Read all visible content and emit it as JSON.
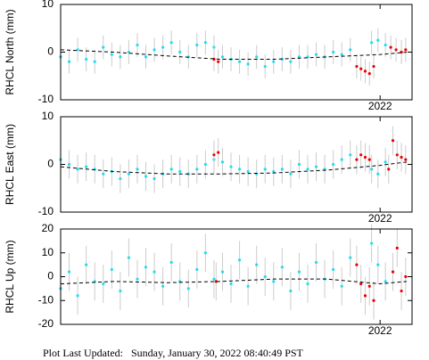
{
  "chart_data": [
    {
      "type": "scatter",
      "ylabel": "RHCL North (mm)",
      "xlim": [
        2019.0,
        2022.3
      ],
      "xticks": [
        2022
      ],
      "ylim": [
        -10,
        10
      ],
      "yticks": [
        -10,
        0,
        10
      ],
      "series": [
        {
          "color": "#22ddee",
          "error": 2.5,
          "x": [
            2019.0,
            2019.08,
            2019.16,
            2019.24,
            2019.32,
            2019.4,
            2019.48,
            2019.56,
            2019.64,
            2019.72,
            2019.8,
            2019.88,
            2019.96,
            2020.04,
            2020.12,
            2020.2,
            2020.28,
            2020.36,
            2020.44,
            2020.52,
            2020.6,
            2020.68,
            2020.76,
            2020.84,
            2020.92,
            2021.0,
            2021.08,
            2021.16,
            2021.24,
            2021.32,
            2021.4,
            2021.48,
            2021.56,
            2021.64,
            2021.72,
            2021.92,
            2021.98,
            2022.05
          ],
          "values": [
            -1,
            -2,
            0.5,
            -1.5,
            -2,
            1,
            -0.5,
            -1,
            0,
            1.5,
            -1,
            0.5,
            1,
            2,
            0,
            -1,
            1.5,
            2,
            1,
            -1,
            -1.5,
            -2,
            -2.5,
            -1,
            -3,
            -2,
            -1.5,
            -2,
            -1,
            -1,
            -0.5,
            -1,
            0,
            -0.5,
            0.5,
            2,
            2.5,
            1.5
          ]
        },
        {
          "color": "#ee0000",
          "error": 2.5,
          "x": [
            2020.44,
            2020.48,
            2021.78,
            2021.82,
            2021.86,
            2021.9,
            2021.94,
            2022.1,
            2022.15,
            2022.2,
            2022.24
          ],
          "values": [
            -1.5,
            -2,
            -3,
            -3.5,
            -4,
            -4.5,
            -3,
            1,
            0.5,
            0,
            0.5
          ]
        },
        {
          "type": "line",
          "color": "#000000",
          "dashed": true,
          "x": [
            2019.0,
            2019.5,
            2020.0,
            2020.5,
            2021.0,
            2021.5,
            2022.0,
            2022.25
          ],
          "values": [
            0.5,
            0,
            -0.8,
            -1.5,
            -1.5,
            -1,
            -0.5,
            0
          ]
        }
      ]
    },
    {
      "type": "scatter",
      "ylabel": "RHCL East (mm)",
      "xlim": [
        2019.0,
        2022.3
      ],
      "xticks": [
        2022
      ],
      "ylim": [
        -10,
        10
      ],
      "yticks": [
        -10,
        0,
        10
      ],
      "series": [
        {
          "color": "#22ddee",
          "error": 3,
          "x": [
            2019.0,
            2019.08,
            2019.16,
            2019.24,
            2019.32,
            2019.4,
            2019.48,
            2019.56,
            2019.64,
            2019.72,
            2019.8,
            2019.88,
            2019.96,
            2020.04,
            2020.12,
            2020.2,
            2020.28,
            2020.36,
            2020.44,
            2020.52,
            2020.6,
            2020.68,
            2020.76,
            2020.84,
            2020.92,
            2021.0,
            2021.08,
            2021.16,
            2021.24,
            2021.32,
            2021.4,
            2021.48,
            2021.56,
            2021.64,
            2021.72,
            2021.92,
            2021.98,
            2022.05
          ],
          "values": [
            1,
            0,
            -1,
            -0.5,
            -1,
            -2,
            -1.5,
            -3,
            -2,
            -1,
            -2.5,
            -3,
            -2,
            -1,
            -1.5,
            -2,
            -1,
            0,
            1,
            0.5,
            -0.5,
            -1,
            -1.5,
            -2,
            -1,
            -1.5,
            -1,
            -2,
            0,
            -1,
            -0.5,
            -1,
            0,
            1,
            2,
            -1,
            -2,
            0.5
          ]
        },
        {
          "color": "#ee0000",
          "error": 3,
          "x": [
            2020.44,
            2020.48,
            2021.78,
            2021.82,
            2021.86,
            2021.9,
            2022.08,
            2022.12,
            2022.16,
            2022.2,
            2022.24
          ],
          "values": [
            2,
            2.5,
            1,
            2,
            1.5,
            1,
            -1,
            5,
            2,
            1.5,
            1
          ]
        },
        {
          "type": "line",
          "color": "#000000",
          "dashed": true,
          "x": [
            2019.0,
            2019.5,
            2020.0,
            2020.5,
            2021.0,
            2021.5,
            2022.0,
            2022.25
          ],
          "values": [
            -0.5,
            -1.5,
            -2,
            -2,
            -1.8,
            -1.2,
            -0.2,
            0.5
          ]
        }
      ]
    },
    {
      "type": "scatter",
      "ylabel": "RHCL Up (mm)",
      "xlim": [
        2019.0,
        2022.3
      ],
      "xticks": [
        2022
      ],
      "ylim": [
        -20,
        20
      ],
      "yticks": [
        -20,
        -10,
        0,
        10,
        20
      ],
      "series": [
        {
          "color": "#22ddee",
          "error": 8,
          "x": [
            2019.0,
            2019.08,
            2019.16,
            2019.24,
            2019.32,
            2019.4,
            2019.48,
            2019.56,
            2019.64,
            2019.72,
            2019.8,
            2019.88,
            2019.96,
            2020.04,
            2020.12,
            2020.2,
            2020.28,
            2020.36,
            2020.44,
            2020.52,
            2020.6,
            2020.68,
            2020.76,
            2020.84,
            2020.92,
            2021.0,
            2021.08,
            2021.16,
            2021.24,
            2021.32,
            2021.4,
            2021.48,
            2021.56,
            2021.64,
            2021.72,
            2021.92,
            2021.98,
            2022.05
          ],
          "values": [
            -5,
            2,
            -8,
            5,
            -2,
            -3,
            3,
            -6,
            8,
            -1,
            4,
            2,
            -4,
            6,
            -2,
            -5,
            3,
            10,
            -1,
            2,
            -3,
            7,
            -4,
            5,
            0,
            -2,
            4,
            -6,
            2,
            -3,
            6,
            -1,
            3,
            -4,
            8,
            14,
            5,
            -2
          ]
        },
        {
          "color": "#ee0000",
          "error": 8,
          "x": [
            2020.46,
            2021.78,
            2021.82,
            2021.86,
            2021.9,
            2021.94,
            2022.12,
            2022.16,
            2022.2,
            2022.24
          ],
          "values": [
            -2,
            5,
            -3,
            -8,
            -4,
            -10,
            2,
            12,
            -6,
            0
          ]
        },
        {
          "type": "line",
          "color": "#000000",
          "dashed": true,
          "x": [
            2019.0,
            2019.5,
            2020.0,
            2020.5,
            2021.0,
            2021.5,
            2022.0,
            2022.25
          ],
          "values": [
            -3,
            -2,
            -2.5,
            -2,
            -1,
            -1,
            -3,
            -2
          ]
        }
      ]
    }
  ],
  "footer": "Plot Last Updated:   Sunday, January 30, 2022 08:40:49 PST"
}
